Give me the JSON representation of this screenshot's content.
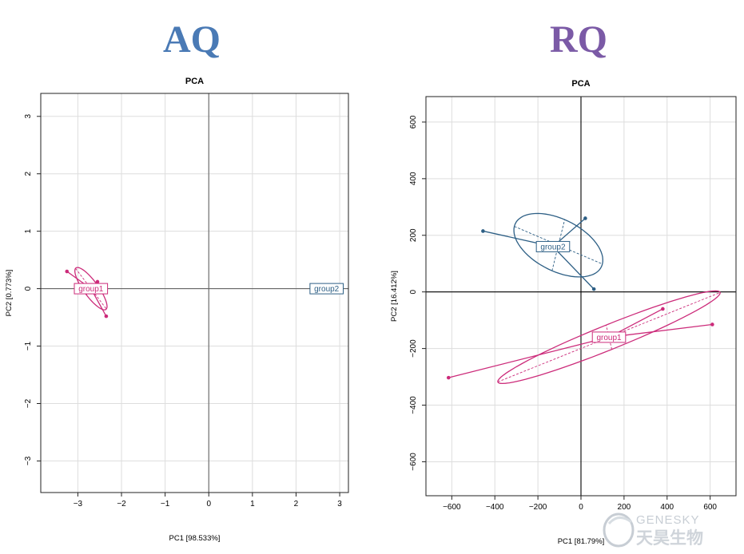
{
  "headers": {
    "left": "AQ",
    "right": "RQ"
  },
  "colors": {
    "left_header": "#4a7ab5",
    "right_header": "#7b5aa6",
    "group1": "#cc2b7a",
    "group2": "#2d5f85",
    "grid": "#dddddd"
  },
  "logo": {
    "latin": "GENESKY",
    "chinese": "天昊生物"
  },
  "chart_data": [
    {
      "type": "scatter",
      "title": "PCA",
      "xlabel": "PC1 [98.533%]",
      "ylabel": "PC2 [0.773%]",
      "xlim": [
        -3.85,
        3.2
      ],
      "ylim": [
        -3.55,
        3.4
      ],
      "xticks": [
        -3,
        -2,
        -1,
        0,
        1,
        2,
        3
      ],
      "yticks": [
        -3,
        -2,
        -1,
        0,
        1,
        2,
        3
      ],
      "grid": true,
      "groups": [
        {
          "name": "group1",
          "color": "#cc2b7a",
          "centroid": [
            -2.7,
            0.0
          ],
          "points": [
            [
              -3.25,
              0.3
            ],
            [
              -2.55,
              0.12
            ],
            [
              -2.35,
              -0.48
            ]
          ],
          "ellipse": {
            "center": [
              -2.7,
              0.0
            ],
            "rx": 0.5,
            "ry": 0.15,
            "angle": -45
          }
        },
        {
          "name": "group2",
          "color": "#2d5f85",
          "centroid": [
            2.7,
            0.0
          ],
          "points": [],
          "ellipse": null
        }
      ]
    },
    {
      "type": "scatter",
      "title": "PCA",
      "xlabel": "PC1 [81.79%]",
      "ylabel": "PC2 [16.412%]",
      "xlim": [
        -720,
        720
      ],
      "ylim": [
        -720,
        690
      ],
      "xticks": [
        -600,
        -400,
        -200,
        0,
        200,
        400,
        600
      ],
      "yticks": [
        -600,
        -400,
        -200,
        0,
        200,
        400,
        600
      ],
      "grid": true,
      "groups": [
        {
          "name": "group1",
          "color": "#cc2b7a",
          "centroid": [
            130,
            -160
          ],
          "points": [
            [
              -615,
              -303
            ],
            [
              380,
              -60
            ],
            [
              610,
              -115
            ]
          ],
          "ellipse": {
            "center": [
              130,
              -160
            ],
            "rx": 540,
            "ry": 45,
            "angle": 17
          }
        },
        {
          "name": "group2",
          "color": "#2d5f85",
          "centroid": [
            -130,
            160
          ],
          "points": [
            [
              -455,
              215
            ],
            [
              20,
              260
            ],
            [
              60,
              10
            ]
          ],
          "ellipse": {
            "center": [
              -105,
              165
            ],
            "rx": 215,
            "ry": 95,
            "angle": -18
          }
        }
      ]
    }
  ]
}
